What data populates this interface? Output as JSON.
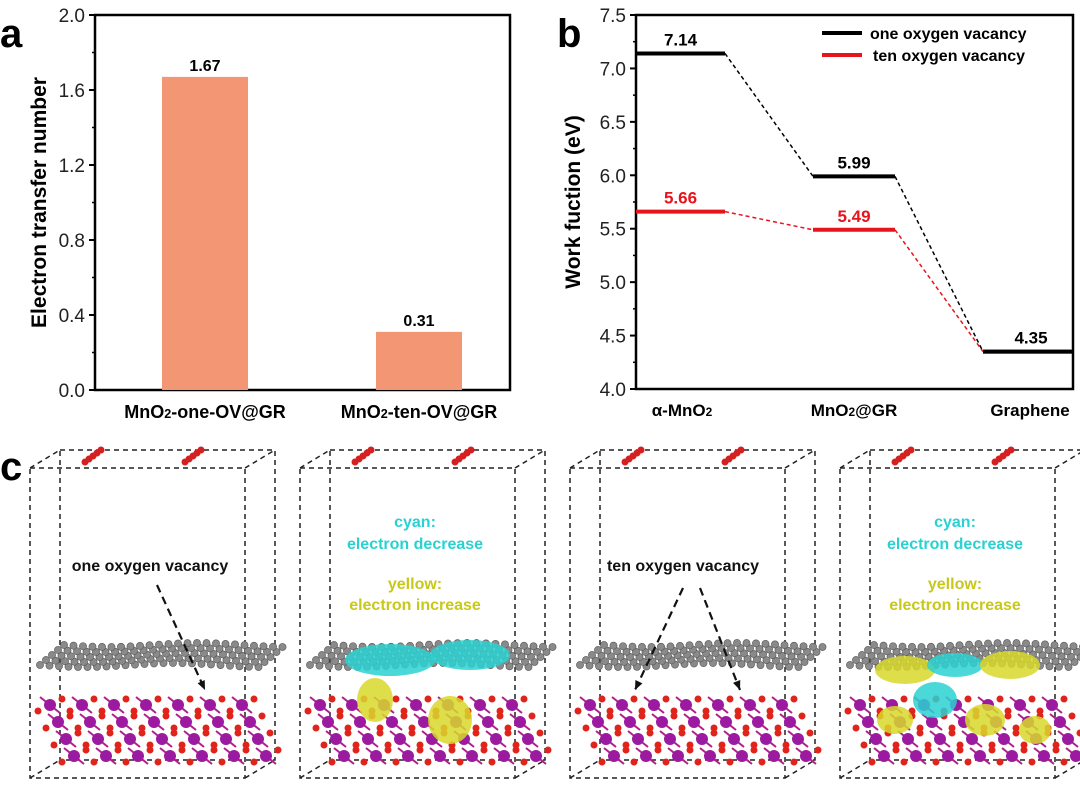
{
  "panels": {
    "a": "a",
    "b": "b",
    "c": "c"
  },
  "chart_data": [
    {
      "type": "bar",
      "title": "",
      "xlabel": "",
      "ylabel": "Electron transfer number",
      "categories": [
        "MnO2-one-OV@GR",
        "MnO2-ten-OV@GR"
      ],
      "values": [
        1.67,
        0.31
      ],
      "data_labels": [
        "1.67",
        "0.31"
      ],
      "ylim": [
        0,
        2.0
      ],
      "yticks": [
        "0.0",
        "0.4",
        "0.8",
        "1.2",
        "1.6",
        "2.0"
      ],
      "bar_color": "#f29673"
    },
    {
      "type": "line",
      "title": "",
      "xlabel": "",
      "ylabel": "Work fuction (eV)",
      "categories": [
        "α-MnO2",
        "MnO2@GR",
        "Graphene"
      ],
      "ylim": [
        4.0,
        7.5
      ],
      "yticks": [
        "4.0",
        "4.5",
        "5.0",
        "5.5",
        "6.0",
        "6.5",
        "7.0",
        "7.5"
      ],
      "legend_position": "top-right",
      "series": [
        {
          "name": "one oxygen vacancy",
          "color": "#000000",
          "values": [
            7.14,
            5.99,
            4.35
          ],
          "labels": [
            "7.14",
            "5.99",
            "4.35"
          ]
        },
        {
          "name": "ten oxygen vacancy",
          "color": "#e8141b",
          "values": [
            5.66,
            5.49,
            4.35
          ],
          "labels": [
            "5.66",
            "5.49",
            ""
          ]
        }
      ]
    }
  ],
  "structures": {
    "one_ov_label": "one oxygen vacancy",
    "ten_ov_label": "ten oxygen vacancy",
    "cyan_title": "cyan:",
    "cyan_desc": "electron decrease",
    "yellow_title": "yellow:",
    "yellow_desc": "electron increase",
    "cyan_color": "#2ad1d1",
    "yellow_color": "#d8d82a"
  }
}
